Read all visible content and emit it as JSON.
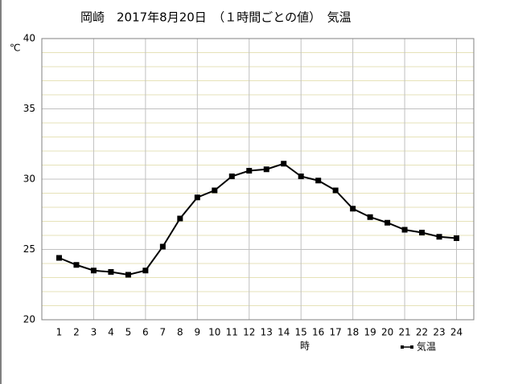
{
  "chart_data": {
    "type": "line",
    "title": "岡崎　2017年8月20日　（１時間ごとの値）　気温",
    "y_label": "℃",
    "x_label": "時",
    "x": [
      1,
      2,
      3,
      4,
      5,
      6,
      7,
      8,
      9,
      10,
      11,
      12,
      13,
      14,
      15,
      16,
      17,
      18,
      19,
      20,
      21,
      22,
      23,
      24
    ],
    "series": [
      {
        "name": "気温",
        "color": "#000000",
        "values": [
          24.4,
          23.9,
          23.5,
          23.4,
          23.2,
          23.5,
          25.2,
          27.2,
          28.7,
          29.2,
          30.2,
          30.6,
          30.7,
          31.1,
          30.2,
          29.9,
          29.2,
          27.9,
          27.3,
          26.9,
          26.4,
          26.2,
          25.9,
          25.8
        ]
      }
    ],
    "xlim": [
      0,
      25
    ],
    "xticks": [
      1,
      2,
      3,
      4,
      5,
      6,
      7,
      8,
      9,
      10,
      11,
      12,
      13,
      14,
      15,
      16,
      17,
      18,
      19,
      20,
      21,
      22,
      23,
      24
    ],
    "ylim": [
      20,
      40
    ],
    "yticks": [
      20,
      25,
      30,
      35,
      40
    ],
    "grid": true,
    "legend": "bottom-right"
  }
}
